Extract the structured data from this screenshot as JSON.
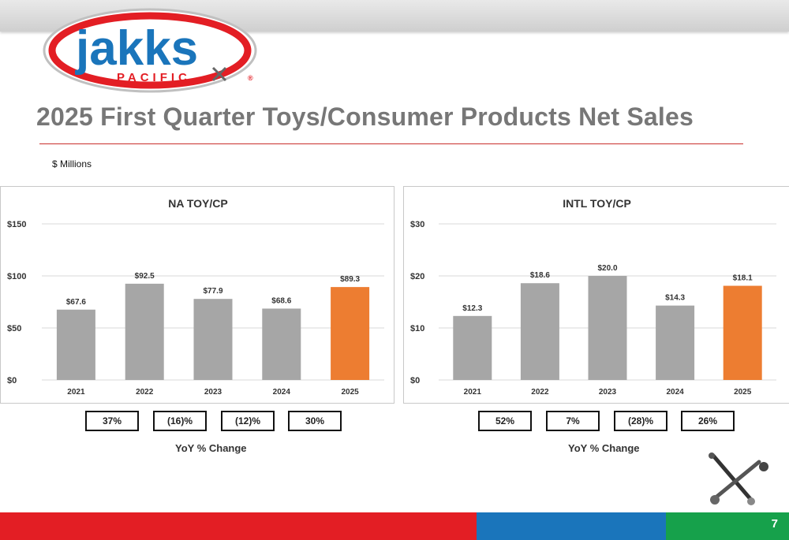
{
  "slide": {
    "title": "2025 First Quarter Toys/Consumer Products Net Sales",
    "units_note": "$ Millions",
    "page_number": "7",
    "logo": {
      "brand": "jakks",
      "sub": "PACIFIC",
      "mark": "®"
    }
  },
  "colors": {
    "bar_default": "#a6a6a6",
    "bar_highlight": "#ed7d31",
    "accent_red": "#e31e24",
    "accent_blue": "#1a75bb",
    "accent_green": "#16a14b"
  },
  "yoy_label": "YoY % Change",
  "chart_data": [
    {
      "type": "bar",
      "title": "NA TOY/CP",
      "categories": [
        "2021",
        "2022",
        "2023",
        "2024",
        "2025"
      ],
      "values": [
        67.6,
        92.5,
        77.9,
        68.6,
        89.3
      ],
      "data_labels": [
        "$67.6",
        "$92.5",
        "$77.9",
        "$68.6",
        "$89.3"
      ],
      "highlight_index": 4,
      "ylim": [
        0,
        150
      ],
      "yticks": [
        0,
        50,
        100,
        150
      ],
      "ytick_labels": [
        "$0",
        "$50",
        "$100",
        "$150"
      ],
      "grid": true,
      "yoy": [
        "37%",
        "(16)%",
        "(12)%",
        "30%"
      ]
    },
    {
      "type": "bar",
      "title": "INTL TOY/CP",
      "categories": [
        "2021",
        "2022",
        "2023",
        "2024",
        "2025"
      ],
      "values": [
        12.3,
        18.6,
        20.0,
        14.3,
        18.1
      ],
      "data_labels": [
        "$12.3",
        "$18.6",
        "$20.0",
        "$14.3",
        "$18.1"
      ],
      "highlight_index": 4,
      "ylim": [
        0,
        30
      ],
      "yticks": [
        0,
        10,
        20,
        30
      ],
      "ytick_labels": [
        "$0",
        "$10",
        "$20",
        "$30"
      ],
      "grid": true,
      "yoy": [
        "52%",
        "7%",
        "(28)%",
        "26%"
      ]
    }
  ]
}
